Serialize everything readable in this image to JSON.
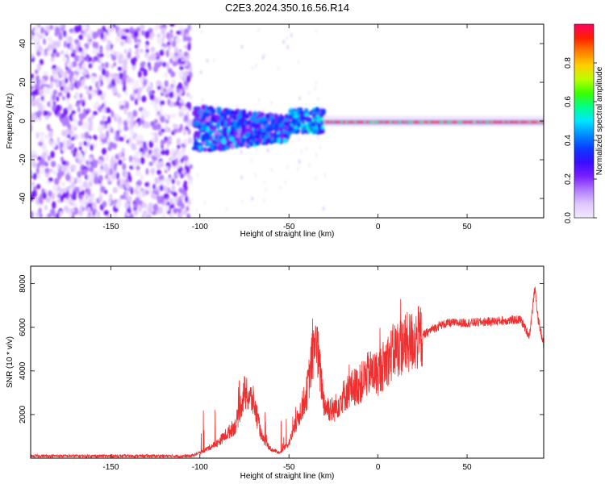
{
  "title": "C2E3.2024.350.16.56.R14",
  "chart_data": [
    {
      "type": "heatmap",
      "xlabel": "Height of straight line (km)",
      "ylabel": "Frequency (Hz)",
      "xlim": [
        -195,
        93
      ],
      "ylim": [
        -50,
        50
      ],
      "xticks": [
        -150,
        -100,
        -50,
        0,
        50
      ],
      "yticks": [
        -40,
        -20,
        0,
        20,
        40
      ],
      "colorbar": {
        "label": "Normalized spectral amplitude",
        "range": [
          0,
          1
        ],
        "ticks": [
          0.0,
          0.2,
          0.4,
          0.6,
          0.8
        ],
        "colors": [
          "#f2e8ff",
          "#e0c8ff",
          "#b07bff",
          "#7a1fff",
          "#3a0bff",
          "#0b3aff",
          "#008cff",
          "#00e5ff",
          "#00ff8c",
          "#39ff00",
          "#b8ff00",
          "#ffd000",
          "#ff8000",
          "#ff2000",
          "#ff0060"
        ]
      },
      "regions": [
        {
          "x": [
            -195,
            -105
          ],
          "f": [
            -50,
            50
          ],
          "amplitude": 0.15
        },
        {
          "x": [
            -103,
            -50
          ],
          "f": [
            -20,
            10
          ],
          "amplitude": 0.35
        },
        {
          "x": [
            -50,
            -30
          ],
          "f": [
            -8,
            6
          ],
          "amplitude": 0.4
        },
        {
          "x": [
            -30,
            93
          ],
          "f": [
            -3,
            2
          ],
          "amplitude": 0.85
        }
      ]
    },
    {
      "type": "line",
      "xlabel": "Height of straight line (km)",
      "ylabel": "SNR (10 * v/v)",
      "xlim": [
        -195,
        93
      ],
      "ylim": [
        0,
        8800
      ],
      "xticks": [
        -150,
        -100,
        -50,
        0,
        50
      ],
      "yticks": [
        2000,
        4000,
        6000,
        8000
      ],
      "color": "#ee3030",
      "x": [
        -195,
        -105,
        -100,
        -90,
        -80,
        -75,
        -70,
        -65,
        -60,
        -55,
        -50,
        -45,
        -40,
        -35,
        -33,
        -30,
        -25,
        -20,
        -15,
        -10,
        -5,
        0,
        5,
        10,
        15,
        20,
        25,
        30,
        35,
        40,
        50,
        60,
        70,
        80,
        85,
        88,
        90,
        93
      ],
      "y": [
        100,
        100,
        250,
        700,
        1500,
        3000,
        2600,
        900,
        400,
        250,
        700,
        1800,
        3000,
        5600,
        4200,
        2400,
        2200,
        2800,
        3200,
        3400,
        3900,
        3900,
        4500,
        5000,
        5200,
        5400,
        5600,
        5900,
        6100,
        6200,
        6200,
        6250,
        6300,
        6350,
        5600,
        7800,
        6300,
        5200
      ]
    }
  ]
}
